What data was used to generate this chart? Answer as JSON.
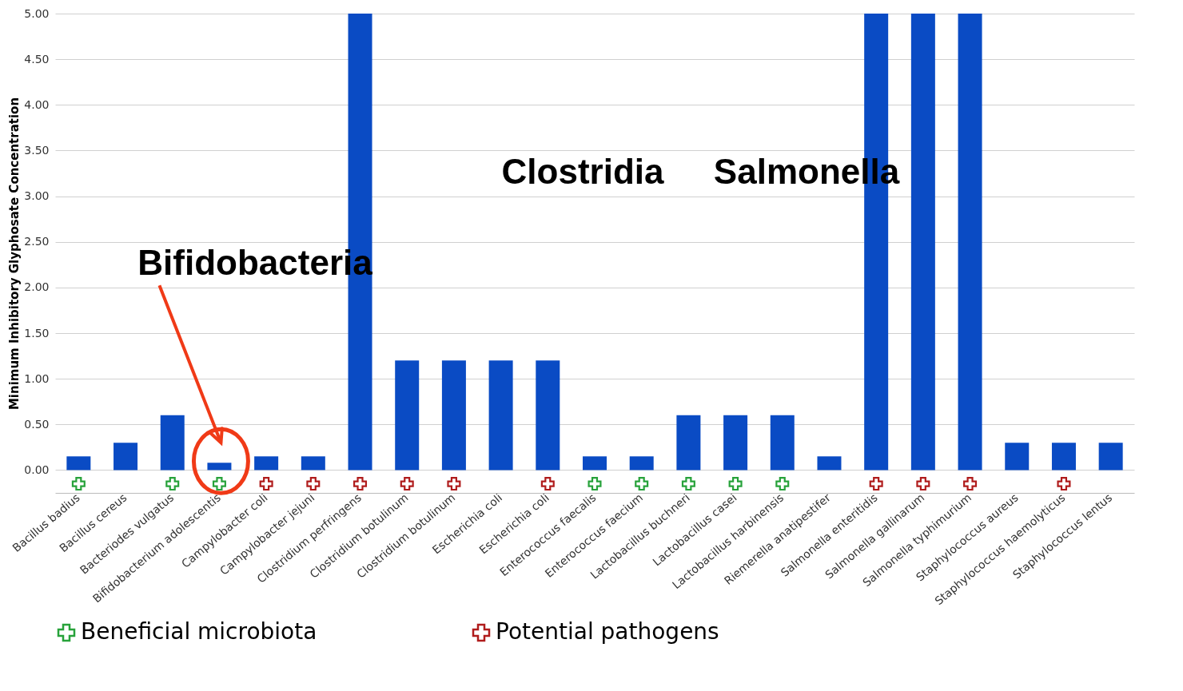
{
  "chart_data": {
    "type": "bar",
    "ylabel": "Minimum Inhibitory Glyphosate Concentration",
    "categories": [
      "Bacillus badius",
      "Bacillus cereus",
      "Bacteriodes vulgatus",
      "Bifidobacterium adolescentis",
      "Campylobacter coli",
      "Campylobacter jejuni",
      "Clostridium perfringens",
      "Clostridium botulinum",
      "Clostridium botulinum",
      "Escherichia coli",
      "Escherichia coli",
      "Enterococcus faecalis",
      "Enterococcus faecium",
      "Lactobacillus buchneri",
      "Lactobacillus casei",
      "Lactobacillus harbinensis",
      "Riemerella anatipestifer",
      "Salmonella enteritidis",
      "Salmonella gallinarum",
      "Salmonella typhimurium",
      "Staphylococcus aureus",
      "Staphylococcus haemolyticus",
      "Staphylococcus lentus"
    ],
    "series": [
      {
        "color": "#0a4bc4",
        "values": [
          0.15,
          0.3,
          0.6,
          0.08,
          0.15,
          0.15,
          5.0,
          1.2,
          1.2,
          1.2,
          1.2,
          0.15,
          0.15,
          0.6,
          0.6,
          0.6,
          0.15,
          5.0,
          5.0,
          5.0,
          0.3,
          0.3,
          0.3
        ]
      },
      {
        "type": "scatter",
        "name": "Beneficial microbiota",
        "color": "#27a23a",
        "values": [
          -0.15,
          null,
          -0.15,
          -0.15,
          null,
          null,
          null,
          null,
          null,
          null,
          null,
          -0.15,
          -0.15,
          -0.15,
          -0.15,
          -0.15,
          null,
          null,
          null,
          null,
          null,
          null,
          null
        ]
      },
      {
        "type": "scatter",
        "name": "Potential pathogens",
        "color": "#b01c1c",
        "values": [
          null,
          null,
          null,
          null,
          -0.15,
          -0.15,
          -0.15,
          -0.15,
          -0.15,
          null,
          -0.15,
          null,
          null,
          null,
          null,
          null,
          null,
          -0.15,
          -0.15,
          -0.15,
          null,
          -0.15,
          null
        ]
      }
    ],
    "ylim": [
      -0.25,
      5.0
    ],
    "yticks": [
      {
        "value": 0,
        "label": "0.00"
      },
      {
        "value": 0.5,
        "label": "0.50"
      },
      {
        "value": 1,
        "label": "1.00"
      },
      {
        "value": 1.5,
        "label": "1.50"
      },
      {
        "value": 2,
        "label": "2.00"
      },
      {
        "value": 2.5,
        "label": "2.50"
      },
      {
        "value": 3,
        "label": "3.00"
      },
      {
        "value": 3.5,
        "label": "3.50"
      },
      {
        "value": 4,
        "label": "4.00"
      },
      {
        "value": 4.5,
        "label": "4.50"
      },
      {
        "value": 5,
        "label": "5.00"
      }
    ],
    "grid": "y",
    "legend": "bottom",
    "marker": "cross",
    "annotations": [
      "Bifidobacteria",
      "Clostridia",
      "Salmonella"
    ]
  }
}
